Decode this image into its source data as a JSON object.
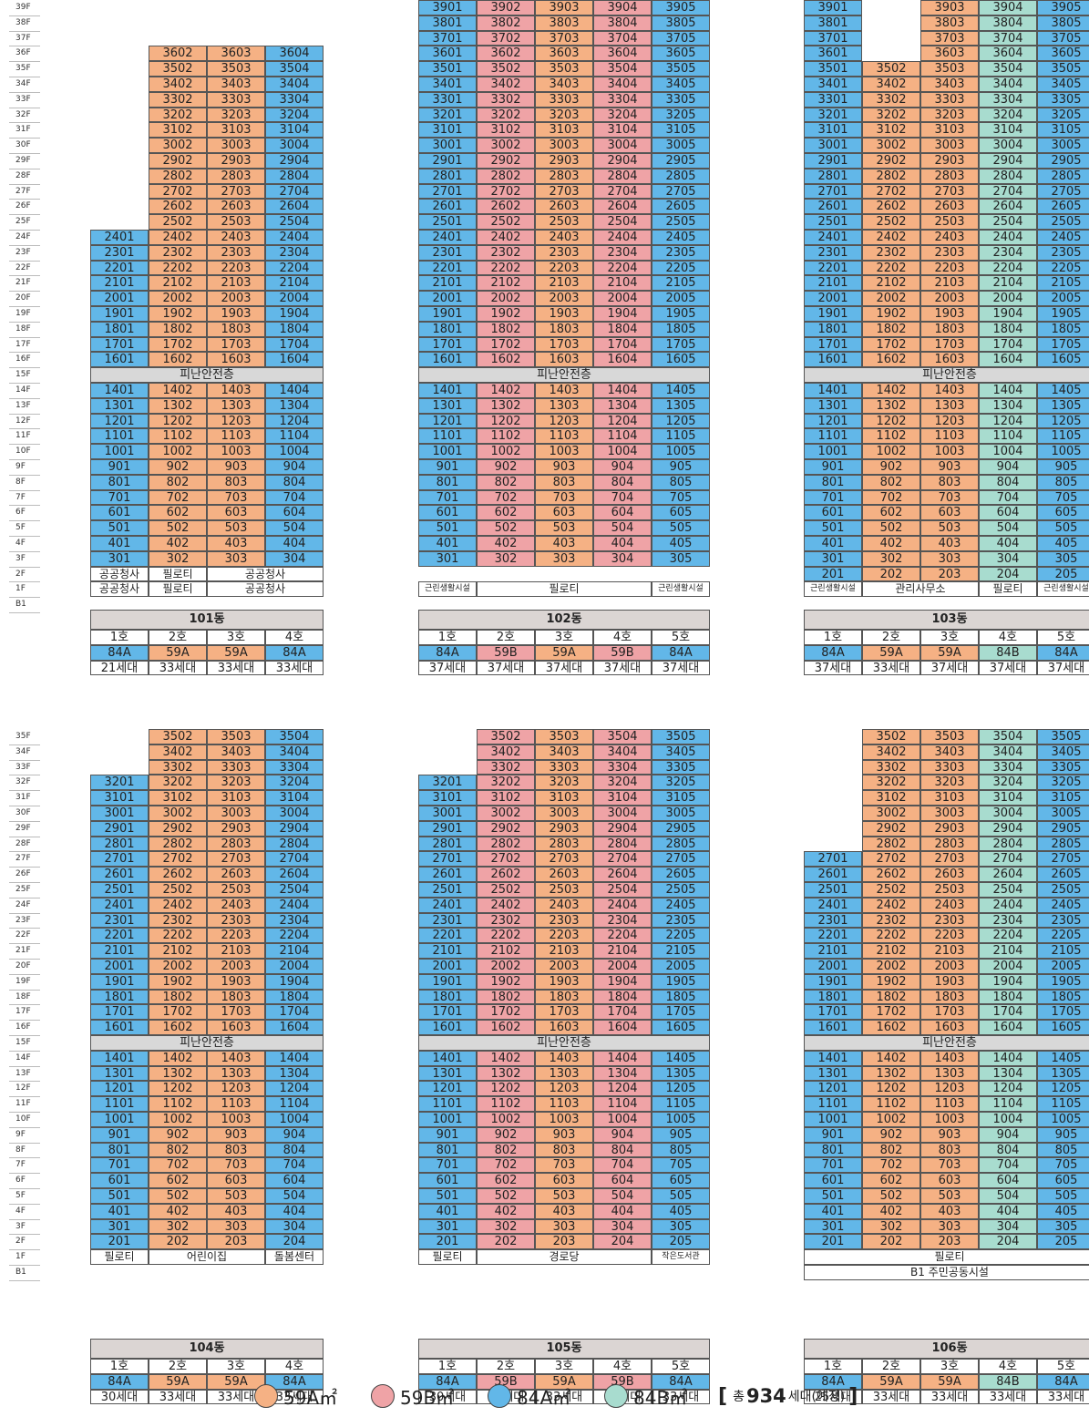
{
  "colors": {
    "59A": "#F5B184",
    "59B": "#EFA3A6",
    "84A": "#62B7E8",
    "84B": "#A8DCCF"
  },
  "floor_label_columns": [
    {
      "floors": [
        "39F",
        "38F",
        "37F",
        "36F",
        "35F",
        "34F",
        "33F",
        "32F",
        "31F",
        "30F",
        "29F",
        "28F",
        "27F",
        "26F",
        "25F",
        "24F",
        "23F",
        "22F",
        "21F",
        "20F",
        "19F",
        "18F",
        "17F",
        "16F",
        "15F",
        "14F",
        "13F",
        "12F",
        "11F",
        "10F",
        "9F",
        "8F",
        "7F",
        "6F",
        "5F",
        "4F",
        "3F",
        "2F",
        "1F",
        "B1"
      ]
    },
    {
      "floors": [
        "35F",
        "34F",
        "33F",
        "32F",
        "31F",
        "30F",
        "29F",
        "28F",
        "27F",
        "26F",
        "25F",
        "24F",
        "23F",
        "22F",
        "21F",
        "20F",
        "19F",
        "18F",
        "17F",
        "16F",
        "15F",
        "14F",
        "13F",
        "12F",
        "11F",
        "10F",
        "9F",
        "8F",
        "7F",
        "6F",
        "5F",
        "4F",
        "3F",
        "2F",
        "1F",
        "B1"
      ]
    }
  ],
  "refuge_label": "피난안전층",
  "buildings": [
    {
      "name": "101동",
      "top": 39,
      "types": [
        "84A",
        "59A",
        "59A",
        "84A"
      ],
      "tops": [
        24,
        36,
        36,
        36
      ],
      "lines": [
        "1호",
        "2호",
        "3호",
        "4호"
      ],
      "counts": [
        "21세대",
        "33세대",
        "33세대",
        "33세대"
      ],
      "amenity_rows": [
        [
          {
            "text": "공공청사",
            "span": 1
          },
          {
            "text": "필로티",
            "span": 1
          },
          {
            "text": "공공청사",
            "span": 2
          }
        ],
        [
          {
            "text": "공공청사",
            "span": 1
          },
          {
            "text": "필로티",
            "span": 1
          },
          {
            "text": "공공청사",
            "span": 2
          }
        ]
      ]
    },
    {
      "name": "102동",
      "top": 39,
      "types": [
        "84A",
        "59B",
        "59A",
        "59B",
        "84A"
      ],
      "tops": [
        39,
        39,
        39,
        39,
        39
      ],
      "lines": [
        "1호",
        "2호",
        "3호",
        "4호",
        "5호"
      ],
      "counts": [
        "37세대",
        "37세대",
        "37세대",
        "37세대",
        "37세대"
      ],
      "amenity_rows": [
        [
          {
            "text": "근린생활시설",
            "span": 1,
            "small": true
          },
          {
            "text": "필로티",
            "span": 3
          },
          {
            "text": "근린생활시설",
            "span": 1,
            "small": true
          }
        ]
      ]
    },
    {
      "name": "103동",
      "top": 39,
      "types": [
        "84A",
        "59A",
        "59A",
        "84B",
        "84A"
      ],
      "tops": [
        39,
        35,
        39,
        39,
        39
      ],
      "lines": [
        "1호",
        "2호",
        "3호",
        "4호",
        "5호"
      ],
      "counts": [
        "37세대",
        "33세대",
        "37세대",
        "37세대",
        "37세대"
      ],
      "amenity_rows": [
        [
          {
            "text": "근린생활시설",
            "span": 1,
            "small": true
          },
          {
            "text": "관리사무소",
            "span": 2
          },
          {
            "text": "필로티",
            "span": 1
          },
          {
            "text": "근린생활시설",
            "span": 1,
            "small": true
          }
        ]
      ]
    },
    {
      "name": "104동",
      "top": 35,
      "types": [
        "84A",
        "59A",
        "59A",
        "84A"
      ],
      "tops": [
        32,
        35,
        35,
        35
      ],
      "lines": [
        "1호",
        "2호",
        "3호",
        "4호"
      ],
      "counts": [
        "30세대",
        "33세대",
        "33세대",
        "33세대"
      ],
      "amenity_rows": [
        [
          {
            "text": "필로티",
            "span": 1
          },
          {
            "text": "어린이집",
            "span": 2
          },
          {
            "text": "돌봄센터",
            "span": 1
          }
        ]
      ]
    },
    {
      "name": "105동",
      "top": 35,
      "types": [
        "84A",
        "59B",
        "59A",
        "59B",
        "84A"
      ],
      "tops": [
        32,
        35,
        35,
        35,
        35
      ],
      "lines": [
        "1호",
        "2호",
        "3호",
        "4호",
        "5호"
      ],
      "counts": [
        "30세대",
        "33세대",
        "33세대",
        "33세대",
        "33세대"
      ],
      "amenity_rows": [
        [
          {
            "text": "필로티",
            "span": 1
          },
          {
            "text": "경로당",
            "span": 3
          },
          {
            "text": "작은도서관",
            "span": 1,
            "small": true
          }
        ]
      ]
    },
    {
      "name": "106동",
      "top": 35,
      "types": [
        "84A",
        "59A",
        "59A",
        "84B",
        "84A"
      ],
      "tops": [
        27,
        35,
        35,
        35,
        35
      ],
      "lines": [
        "1호",
        "2호",
        "3호",
        "4호",
        "5호"
      ],
      "counts": [
        "25세대",
        "33세대",
        "33세대",
        "33세대",
        "33세대"
      ],
      "amenity_rows": [
        [
          {
            "text": "필로티",
            "span": 5
          }
        ],
        [
          {
            "text": "B1 주민공동시설",
            "span": 5
          }
        ]
      ]
    }
  ],
  "legend": {
    "items": [
      {
        "type": "59A",
        "label": "59A㎡"
      },
      {
        "type": "59B",
        "label": "59B㎡"
      },
      {
        "type": "84A",
        "label": "84A㎡"
      },
      {
        "type": "84B",
        "label": "84B㎡"
      }
    ],
    "total_prefix": "총",
    "total_number": "934",
    "total_suffix": "세대(예정)",
    "bracket_open": "[",
    "bracket_close": "]"
  }
}
